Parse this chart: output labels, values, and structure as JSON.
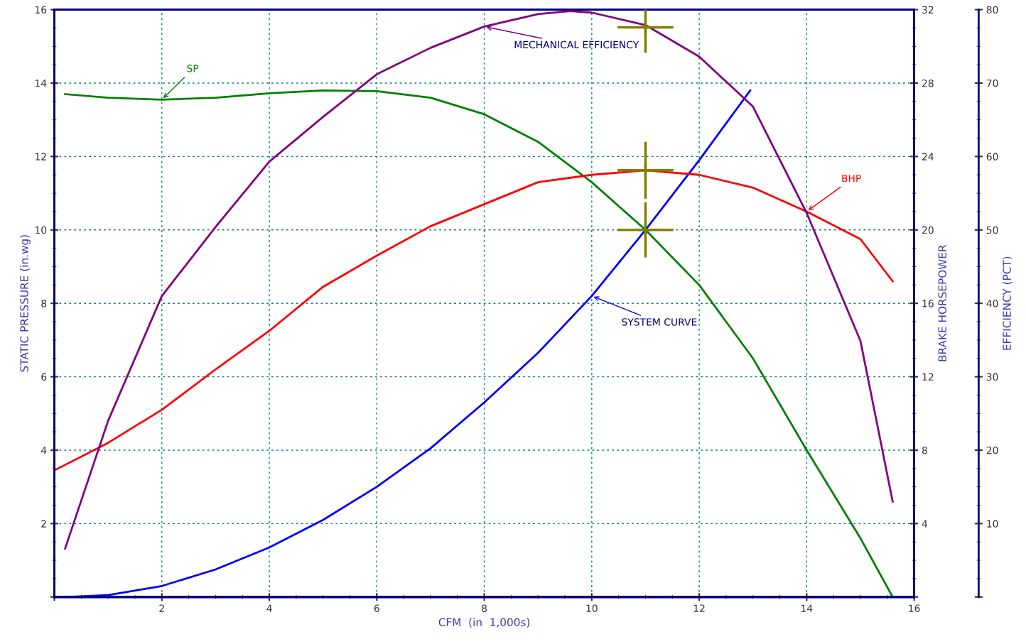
{
  "chart_data": {
    "type": "line",
    "xlabel": "CFM (in 1,000s)",
    "ylabel": "STATIC PRESSURE (in.wg)",
    "y2label": "BRAKE HORSEPOWER",
    "y3label": "EFFICIENCY (PCT)",
    "xlim": [
      0,
      16
    ],
    "xticks": [
      {
        "value": 0,
        "label": null
      },
      2,
      4,
      6,
      8,
      10,
      12,
      14,
      16
    ],
    "ylim": [
      0,
      16
    ],
    "yticks": [
      {
        "value": 0,
        "label": null
      },
      2,
      4,
      6,
      8,
      10,
      12,
      14,
      16
    ],
    "y2lim": [
      0,
      32
    ],
    "y2ticks": [
      {
        "value": 0,
        "label": null
      },
      4,
      8,
      12,
      16,
      20,
      24,
      28,
      32
    ],
    "y3lim": [
      0,
      80
    ],
    "y3ticks": [
      {
        "value": 0,
        "label": null
      },
      10,
      20,
      30,
      40,
      50,
      60,
      70,
      80
    ],
    "grid": true,
    "marker": "none",
    "line_style": "solid",
    "series": [
      {
        "name": "SP",
        "color": "#008000",
        "x": [
          0.2,
          1,
          2,
          3,
          4,
          5,
          6,
          7,
          8,
          9,
          10,
          11,
          12,
          13,
          14,
          15,
          15.6
        ],
        "values": [
          13.7,
          13.6,
          13.55,
          13.6,
          13.72,
          13.8,
          13.78,
          13.6,
          13.15,
          12.4,
          11.3,
          10.0,
          8.5,
          6.5,
          4.0,
          1.6,
          0.0
        ]
      },
      {
        "name": "MECHANICAL EFFICIENCY",
        "color": "#800080",
        "axis": "y3",
        "x": [
          0.2,
          1,
          2,
          3,
          4,
          5,
          6,
          7,
          8,
          9,
          9.6,
          10,
          11,
          12,
          13,
          14,
          15,
          15.6
        ],
        "values": [
          6.6,
          24,
          41,
          50.4,
          59.3,
          65.4,
          71.2,
          74.8,
          77.7,
          79.4,
          79.8,
          79.6,
          77.9,
          73.6,
          66.8,
          52.3,
          34.9,
          13
        ]
      },
      {
        "name": "BHP",
        "color": "#ff0000",
        "axis": "y2",
        "x": [
          0,
          1,
          2,
          3,
          4,
          5,
          6,
          7,
          8,
          9,
          10,
          11,
          12,
          13,
          14,
          15,
          15.6
        ],
        "values": [
          6.9,
          8.4,
          10.2,
          12.4,
          14.5,
          16.9,
          18.6,
          20.2,
          21.4,
          22.6,
          23.0,
          23.25,
          23.0,
          22.3,
          21.0,
          19.5,
          17.2
        ]
      },
      {
        "name": "SYSTEM CURVE",
        "color": "#0000ff",
        "x": [
          0.2,
          1,
          2,
          3,
          4,
          5,
          6,
          7,
          8,
          9,
          10,
          11,
          12,
          12.95
        ],
        "values": [
          0,
          0.05,
          0.3,
          0.75,
          1.35,
          2.1,
          3.0,
          4.05,
          5.3,
          6.65,
          8.2,
          10.0,
          11.9,
          13.8
        ]
      },
      {
        "type": "scatter",
        "marker": "cross",
        "color": "#808000",
        "x": [
          11
        ],
        "values": [
          10.0
        ],
        "errors": [
          0.75
        ],
        "xerrors": [
          0.52
        ]
      },
      {
        "type": "scatter",
        "marker": "cross",
        "color": "#808000",
        "axis": "y2",
        "x": [
          11
        ],
        "values": [
          23.25
        ],
        "errors": [
          1.55
        ],
        "xerrors": [
          0.52
        ]
      },
      {
        "type": "scatter",
        "marker": "cross",
        "color": "#808000",
        "axis": "y3",
        "x": [
          11
        ],
        "values": [
          77.6
        ],
        "errors": [
          3.5
        ],
        "xerrors": [
          0.52
        ]
      }
    ]
  }
}
